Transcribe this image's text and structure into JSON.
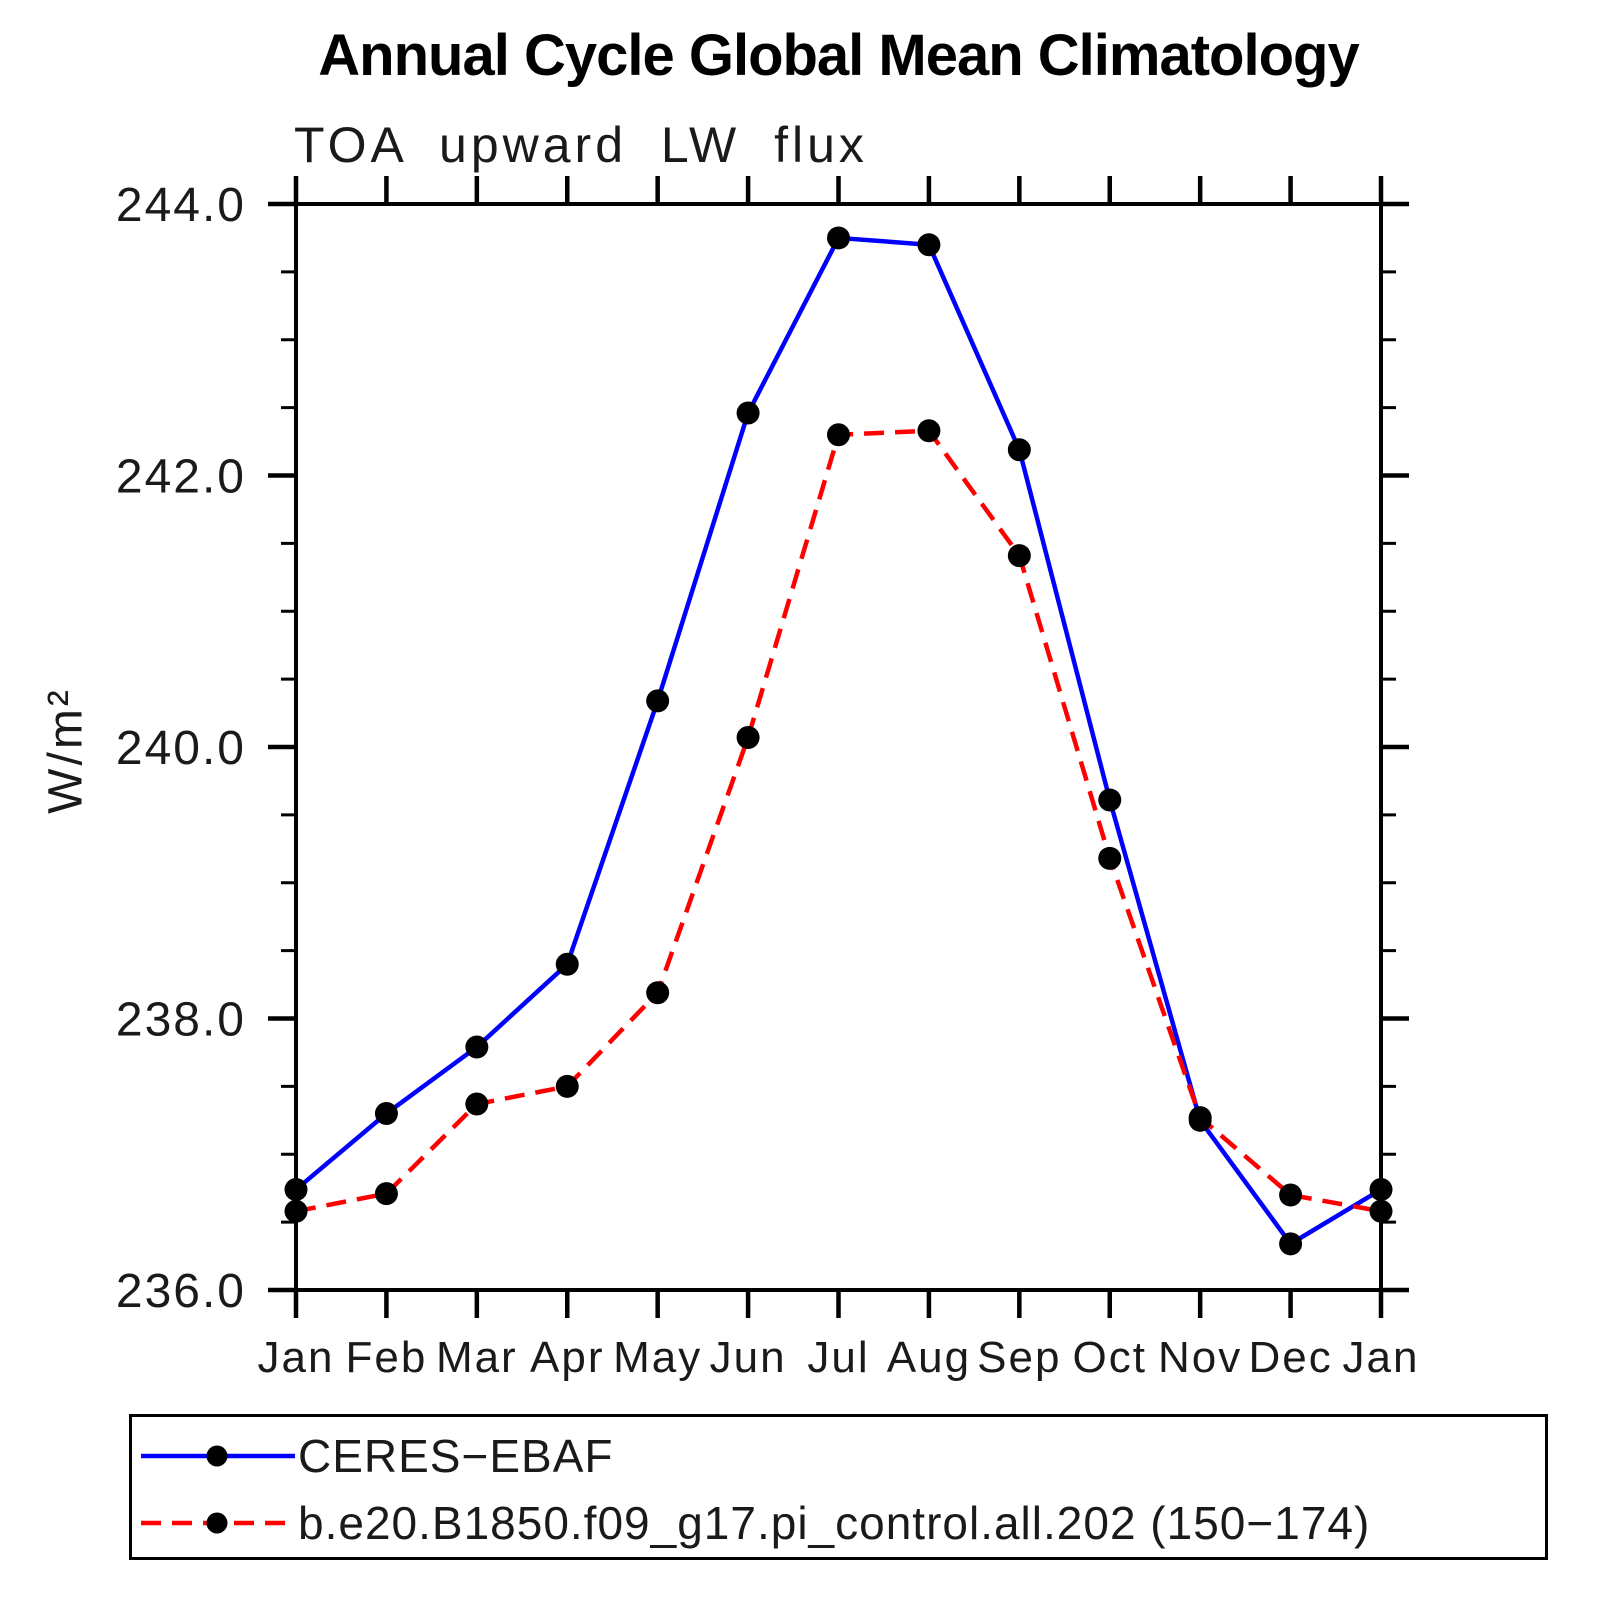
{
  "page": {
    "background": "#ffffff"
  },
  "chart": {
    "title": "Annual Cycle Global Mean Climatology",
    "subtitle": "TOA upward LW flux",
    "ylabel": "W/m²"
  },
  "legend": {
    "entries": [
      {
        "label": "CERES−EBAF",
        "color": "#0000ff",
        "style": "solid",
        "marker_color": "#000000"
      },
      {
        "label": "b.e20.B1850.f09_g17.pi_control.all.202 (150−174)",
        "color": "#ff0000",
        "style": "dashed",
        "marker_color": "#000000"
      }
    ]
  },
  "chart_data": {
    "type": "line",
    "title": "Annual Cycle Global Mean Climatology",
    "subtitle": "TOA upward LW flux",
    "xlabel": "",
    "ylabel": "W/m²",
    "categories": [
      "Jan",
      "Feb",
      "Mar",
      "Apr",
      "May",
      "Jun",
      "Jul",
      "Aug",
      "Sep",
      "Oct",
      "Nov",
      "Dec",
      "Jan"
    ],
    "series": [
      {
        "name": "CERES−EBAF",
        "color": "#0000ff",
        "line_style": "solid",
        "marker": "circle",
        "marker_color": "#000000",
        "values": [
          236.74,
          237.3,
          237.79,
          238.4,
          240.34,
          242.46,
          243.75,
          243.7,
          242.19,
          239.61,
          237.25,
          236.34,
          236.74
        ]
      },
      {
        "name": "b.e20.B1850.f09_g17.pi_control.all.202 (150−174)",
        "color": "#ff0000",
        "line_style": "dashed",
        "marker": "circle",
        "marker_color": "#000000",
        "values": [
          236.58,
          236.71,
          237.37,
          237.5,
          238.19,
          240.07,
          242.3,
          242.33,
          241.41,
          239.18,
          237.27,
          236.7,
          236.58
        ]
      }
    ],
    "ylim": [
      236.0,
      244.0
    ],
    "y_major_tick_step": 2.0,
    "y_minor_tick_step": 0.5,
    "ytick_labels": [
      "236.0",
      "238.0",
      "240.0",
      "242.0",
      "244.0"
    ],
    "grid": false,
    "legend_position": "bottom",
    "axis_color": "#000000"
  }
}
